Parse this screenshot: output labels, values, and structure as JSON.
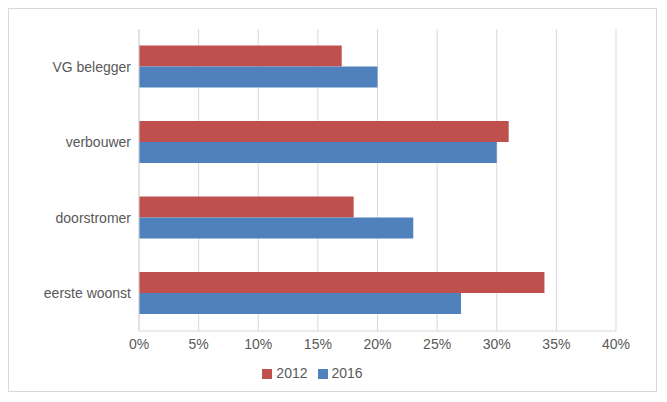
{
  "chart_data": {
    "type": "bar",
    "orientation": "horizontal",
    "categories": [
      "VG belegger",
      "verbouwer",
      "doorstromer",
      "eerste woonst"
    ],
    "series": [
      {
        "name": "2012",
        "color": "#c0504d",
        "values": [
          17,
          31,
          18,
          34
        ]
      },
      {
        "name": "2016",
        "color": "#4f81bd",
        "values": [
          20,
          30,
          23,
          27
        ]
      }
    ],
    "xlim": [
      0,
      40
    ],
    "xticks": [
      {
        "value": 0,
        "label": "0%"
      },
      {
        "value": 5,
        "label": "5%"
      },
      {
        "value": 10,
        "label": "10%"
      },
      {
        "value": 15,
        "label": "15%"
      },
      {
        "value": 20,
        "label": "20%"
      },
      {
        "value": 25,
        "label": "25%"
      },
      {
        "value": 30,
        "label": "30%"
      },
      {
        "value": 35,
        "label": "35%"
      },
      {
        "value": 40,
        "label": "40%"
      }
    ],
    "grid": true,
    "legend": "bottom"
  }
}
